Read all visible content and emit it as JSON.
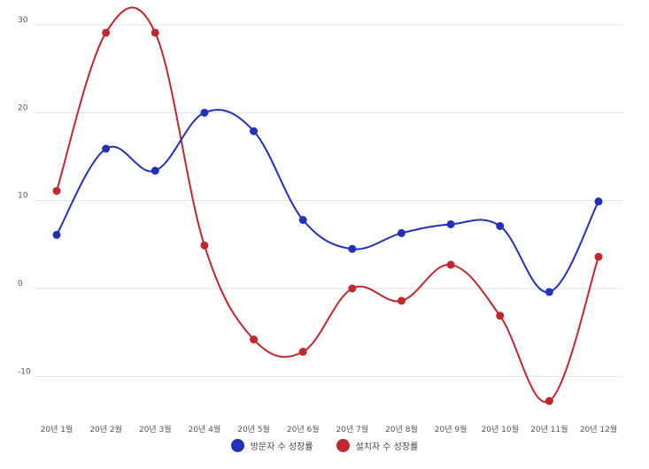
{
  "chart_data": {
    "type": "line",
    "categories": [
      "20년 1월",
      "20년 2월",
      "20년 3월",
      "20년 4월",
      "20년 5월",
      "20년 6월",
      "20년 7월",
      "20년 8월",
      "20년 9월",
      "20년 10월",
      "20년 11월",
      "20년 12월"
    ],
    "series": [
      {
        "name": "방문자 수 성장률",
        "color": "#2331b8",
        "values": [
          6.1,
          15.9,
          13.4,
          20.0,
          17.9,
          7.8,
          4.5,
          6.3,
          7.3,
          7.1,
          -0.4,
          9.9
        ]
      },
      {
        "name": "설치자 수 성장률",
        "color": "#c0282e",
        "values": [
          11.1,
          29.1,
          29.1,
          4.9,
          -5.8,
          -7.2,
          0.0,
          -1.4,
          2.7,
          -3.1,
          -12.8,
          3.6
        ]
      }
    ],
    "y_ticks": [
      30,
      20,
      10,
      0,
      -10
    ],
    "ylim": [
      -15,
      30
    ],
    "grid": true,
    "legend_position": "bottom"
  }
}
